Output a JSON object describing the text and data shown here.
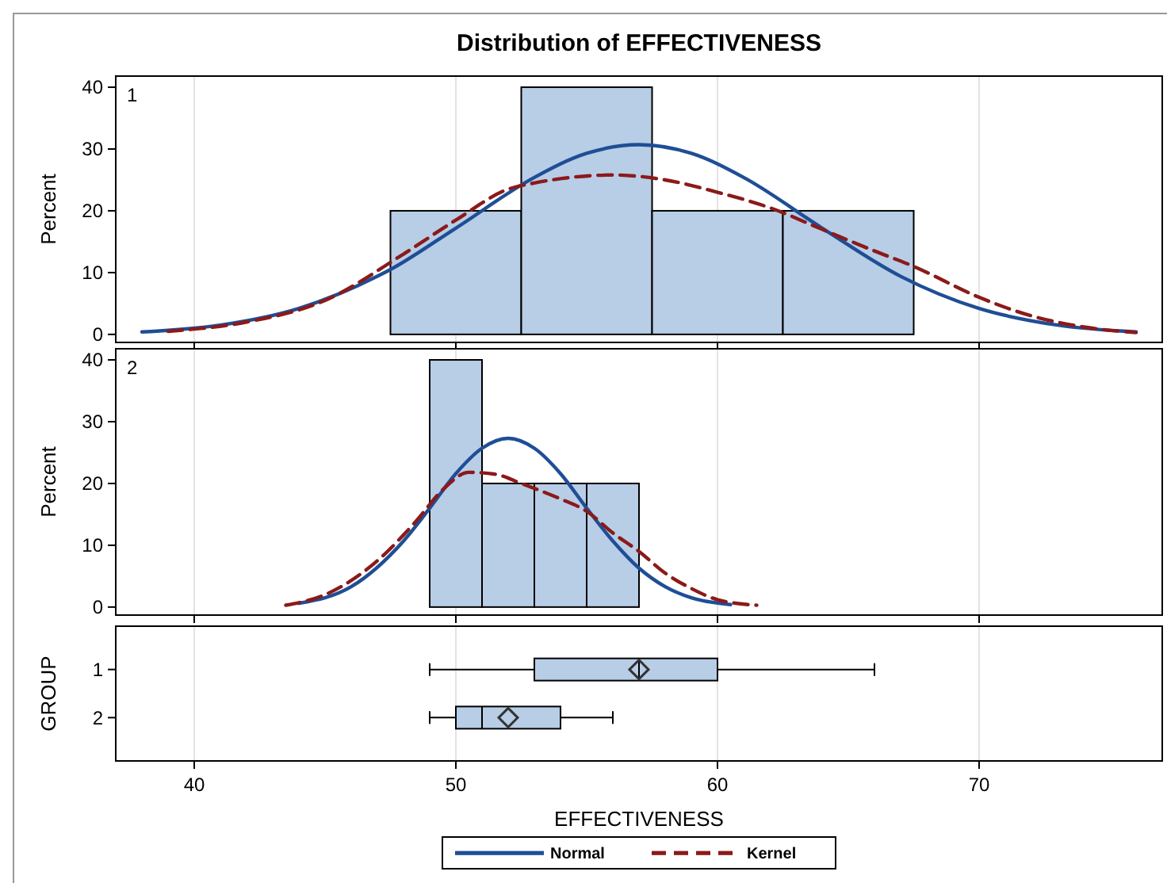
{
  "chart_data": [
    {
      "type": "histogram",
      "title": "Distribution of EFFECTIVENESS",
      "ylabel": "Percent",
      "annotations": [
        "1"
      ],
      "bins": [
        47.5,
        52.5,
        57.5,
        62.5,
        67.5
      ],
      "values": [
        20,
        40,
        20,
        20
      ],
      "color": "#b8cde6",
      "xlim": [
        37,
        77
      ],
      "xticks": [
        40,
        50,
        60,
        70
      ],
      "ylim": [
        -1.3,
        41.8
      ],
      "yticks": [
        0,
        10,
        20,
        30,
        40
      ],
      "grid": "x",
      "tick_labels": "y",
      "legend": "bottom",
      "series": [
        {
          "name": "Normal",
          "type": "line",
          "color": "#1f4e96",
          "line_style": "solid",
          "x": [
            38,
            41,
            44,
            47,
            47.5,
            50,
            53,
            55,
            57,
            59,
            61,
            64,
            67,
            70,
            73,
            76
          ],
          "values": [
            0.4,
            1.5,
            4.2,
            9.4,
            10.5,
            17.2,
            25.4,
            29.3,
            30.7,
            29.3,
            25.4,
            17.2,
            9.4,
            4.2,
            1.5,
            0.4
          ]
        },
        {
          "name": "Kernel",
          "type": "line",
          "color": "#8b1a1a",
          "line_style": "dashed",
          "x": [
            39,
            42,
            45,
            48,
            50,
            52,
            53,
            54,
            56,
            58,
            60,
            62,
            64,
            66,
            67.5,
            70,
            72,
            74,
            76
          ],
          "values": [
            0.5,
            2,
            5.5,
            13,
            18.5,
            23.5,
            24.5,
            25.2,
            25.8,
            25,
            23,
            20.5,
            17,
            13.5,
            11,
            6,
            3,
            1.2,
            0.3
          ]
        }
      ]
    },
    {
      "type": "histogram",
      "ylabel": "Percent",
      "annotations": [
        "2"
      ],
      "bins": [
        49,
        51,
        53,
        55,
        57
      ],
      "values": [
        40,
        20,
        20,
        20
      ],
      "color": "#b8cde6",
      "xlim": [
        37,
        77
      ],
      "xticks": [
        40,
        50,
        60,
        70
      ],
      "ylim": [
        -1.3,
        41.8
      ],
      "yticks": [
        0,
        10,
        20,
        30,
        40
      ],
      "grid": "x",
      "tick_labels": "y",
      "series": [
        {
          "type": "line",
          "color": "#1f4e96",
          "line_style": "solid",
          "x": [
            44,
            46,
            48,
            49,
            50,
            51,
            52,
            53,
            54,
            55,
            56,
            57,
            58,
            59,
            60.5
          ],
          "values": [
            0.6,
            3.3,
            10.7,
            16,
            21.6,
            25.7,
            27.3,
            25.7,
            21.6,
            16,
            10.7,
            6.3,
            3.3,
            1.5,
            0.4
          ]
        },
        {
          "type": "line",
          "color": "#8b1a1a",
          "line_style": "dashed",
          "x": [
            43.5,
            45,
            47,
            48.5,
            49.5,
            50.5,
            51.5,
            52.5,
            54,
            55,
            56,
            57,
            58,
            59,
            60,
            61.5
          ],
          "values": [
            0.3,
            2,
            7.5,
            14,
            19,
            21.8,
            21.5,
            20,
            17.5,
            15.5,
            12,
            9,
            5.5,
            3,
            1.2,
            0.3
          ]
        }
      ]
    },
    {
      "type": "box",
      "orientation": "horizontal",
      "xlabel": "EFFECTIVENESS",
      "ylabel": "GROUP",
      "categories": [
        "1",
        "2"
      ],
      "color": "#b8cde6",
      "xlim": [
        37,
        77
      ],
      "xticks": [
        40,
        50,
        60,
        70
      ],
      "grid": "x",
      "boxes": [
        {
          "low": 49,
          "q1": 53,
          "median": 57,
          "q3": 60,
          "high": 66,
          "mean": 57
        },
        {
          "low": 49,
          "q1": 50,
          "median": 51,
          "q3": 54,
          "high": 56,
          "mean": 52
        }
      ]
    }
  ]
}
